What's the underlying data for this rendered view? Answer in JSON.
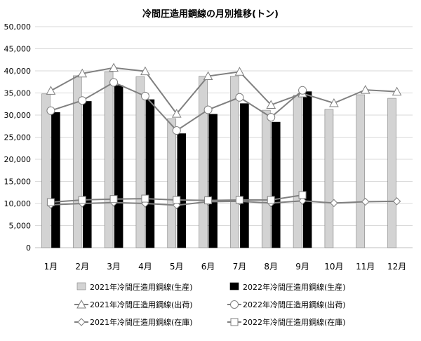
{
  "chart_data": {
    "type": "bar",
    "title": "冷間圧造用鋼線の月別推移(トン)",
    "categories": [
      "1月",
      "2月",
      "3月",
      "4月",
      "5月",
      "6月",
      "7月",
      "8月",
      "9月",
      "10月",
      "11月",
      "12月"
    ],
    "ylim": [
      0,
      50000
    ],
    "yticks": [
      "0",
      "5,000",
      "10,000",
      "15,000",
      "20,000",
      "25,000",
      "30,000",
      "35,000",
      "40,000",
      "45,000",
      "50,000"
    ],
    "grid": true,
    "legend_position": "bottom",
    "series": [
      {
        "name": "2021年冷間圧造用鋼線(生産)",
        "kind": "bar",
        "color": "#d3d3d3",
        "values": [
          34800,
          38900,
          39800,
          38700,
          29200,
          38800,
          38800,
          31100,
          34500,
          31300,
          34600,
          33800
        ]
      },
      {
        "name": "2022年冷間圧造用鋼線(生産)",
        "kind": "bar",
        "color": "#000000",
        "values": [
          30600,
          33100,
          36700,
          33500,
          25800,
          30200,
          32600,
          28400,
          35300,
          null,
          null,
          null
        ]
      },
      {
        "name": "2021年冷間圧造用鋼線(出荷)",
        "kind": "line",
        "marker": "triangle",
        "color": "#808080",
        "values": [
          35500,
          39400,
          40700,
          39900,
          30300,
          38800,
          39800,
          32300,
          34900,
          32700,
          35700,
          35300
        ]
      },
      {
        "name": "2022年冷間圧造用鋼線(出荷)",
        "kind": "line",
        "marker": "circle",
        "color": "#808080",
        "values": [
          31000,
          33300,
          37400,
          34300,
          26500,
          31200,
          34000,
          29500,
          35600,
          null,
          null,
          null
        ]
      },
      {
        "name": "2021年冷間圧造用鋼線(在庫)",
        "kind": "line",
        "marker": "diamond",
        "color": "#808080",
        "values": [
          9700,
          10000,
          10200,
          10000,
          9600,
          10400,
          10500,
          10100,
          10600,
          10100,
          10400,
          10500
        ]
      },
      {
        "name": "2022年冷間圧造用鋼線(在庫)",
        "kind": "line",
        "marker": "square",
        "color": "#808080",
        "values": [
          10300,
          10800,
          11000,
          11100,
          10800,
          10700,
          10800,
          10800,
          11900,
          null,
          null,
          null
        ]
      }
    ]
  }
}
